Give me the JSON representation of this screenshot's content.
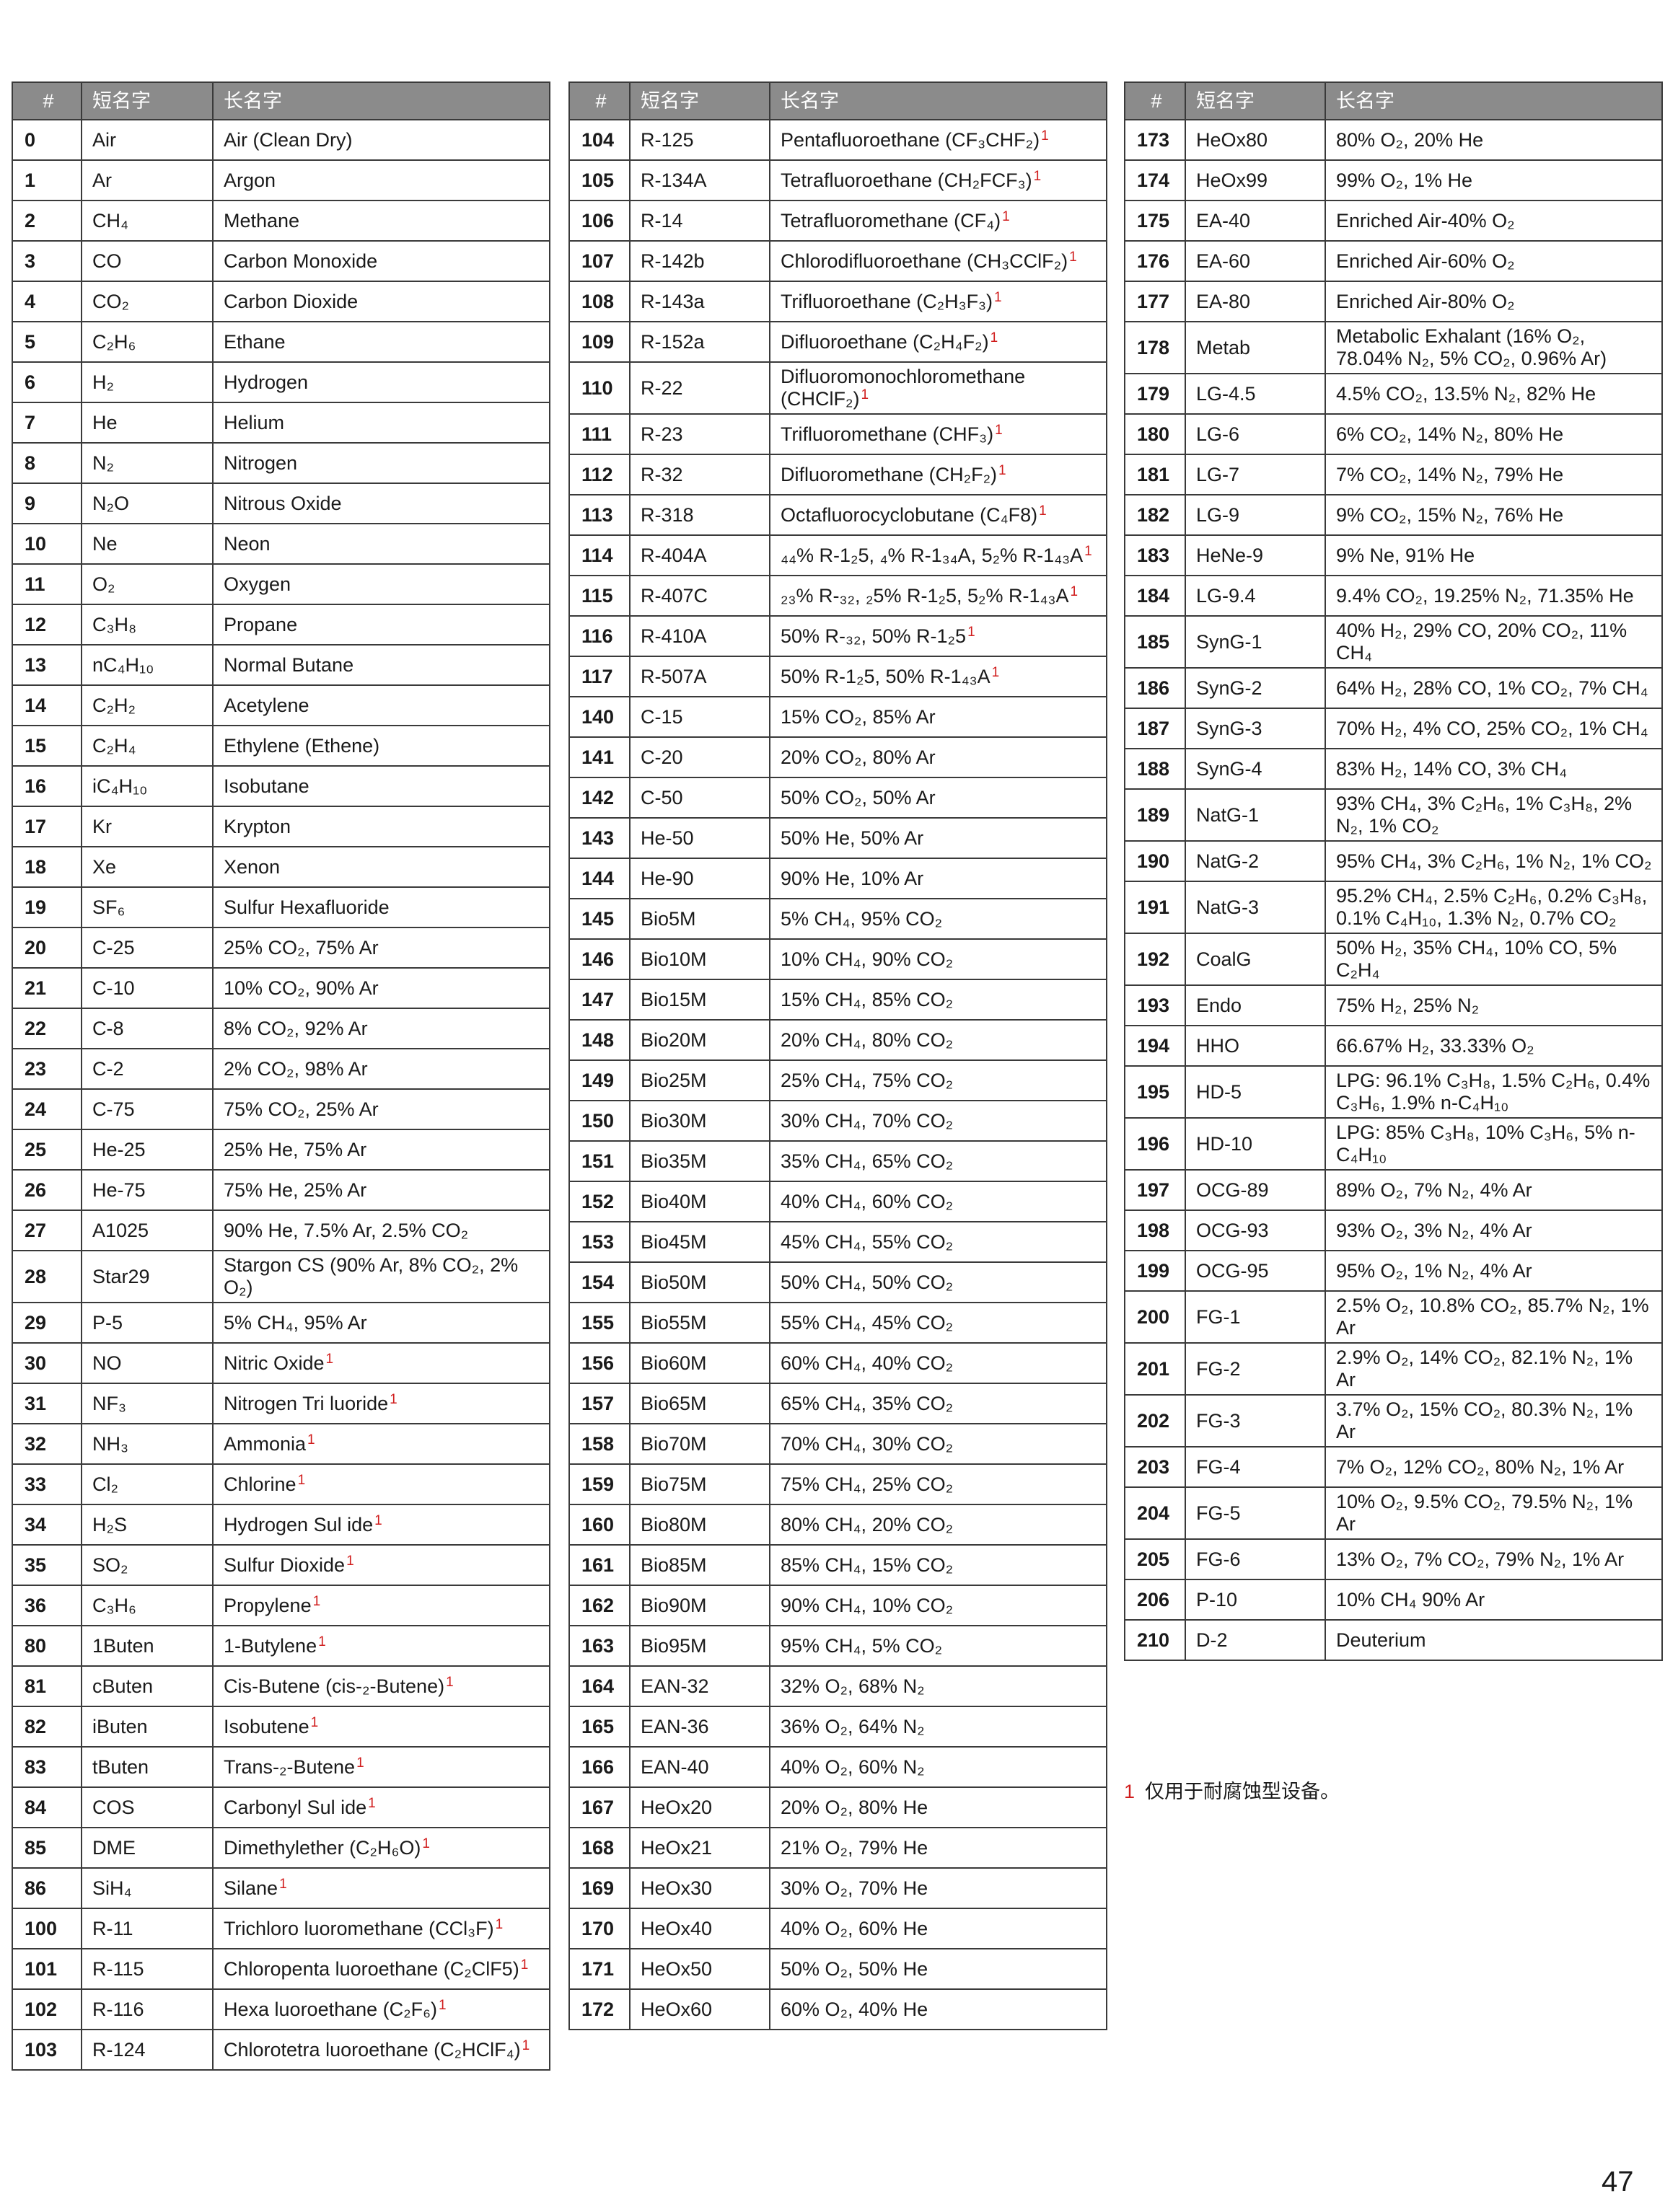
{
  "tables": [
    {
      "header": [
        "#",
        "短名字",
        "长名字"
      ],
      "rows": [
        [
          "0",
          "Air",
          "Air (Clean Dry)"
        ],
        [
          "1",
          "Ar",
          "Argon"
        ],
        [
          "2",
          "CH₄",
          "Methane"
        ],
        [
          "3",
          "CO",
          "Carbon Monoxide"
        ],
        [
          "4",
          "CO₂",
          "Carbon Dioxide"
        ],
        [
          "5",
          "C₂H₆",
          "Ethane"
        ],
        [
          "6",
          "H₂",
          "Hydrogen"
        ],
        [
          "7",
          "He",
          "Helium"
        ],
        [
          "8",
          "N₂",
          "Nitrogen"
        ],
        [
          "9",
          "N₂O",
          "Nitrous Oxide"
        ],
        [
          "10",
          "Ne",
          "Neon"
        ],
        [
          "11",
          "O₂",
          "Oxygen"
        ],
        [
          "12",
          "C₃H₈",
          "Propane"
        ],
        [
          "13",
          "nC₄H₁₀",
          "Normal Butane"
        ],
        [
          "14",
          "C₂H₂",
          "Acetylene"
        ],
        [
          "15",
          "C₂H₄",
          "Ethylene (Ethene)"
        ],
        [
          "16",
          "iC₄H₁₀",
          "Isobutane"
        ],
        [
          "17",
          "Kr",
          "Krypton"
        ],
        [
          "18",
          "Xe",
          "Xenon"
        ],
        [
          "19",
          "SF₆",
          "Sulfur Hexafluoride"
        ],
        [
          "20",
          "C-25",
          "25% CO₂, 75% Ar"
        ],
        [
          "21",
          "C-10",
          "10% CO₂, 90% Ar"
        ],
        [
          "22",
          "C-8",
          "8% CO₂, 92% Ar"
        ],
        [
          "23",
          "C-2",
          "2% CO₂, 98% Ar"
        ],
        [
          "24",
          "C-75",
          "75% CO₂, 25% Ar"
        ],
        [
          "25",
          "He-25",
          "25% He, 75% Ar"
        ],
        [
          "26",
          "He-75",
          "75% He, 25% Ar"
        ],
        [
          "27",
          "A1025",
          "90% He, 7.5% Ar, 2.5% CO₂"
        ],
        [
          "28",
          "Star29",
          "Stargon CS (90% Ar, 8% CO₂, 2% O₂)"
        ],
        [
          "29",
          "P-5",
          "5% CH₄, 95% Ar"
        ],
        [
          "30",
          "NO",
          "Nitric Oxide",
          "1"
        ],
        [
          "31",
          "NF₃",
          "Nitrogen Tri luoride",
          "1"
        ],
        [
          "32",
          "NH₃",
          "Ammonia",
          "1"
        ],
        [
          "33",
          "Cl₂",
          "Chlorine",
          "1"
        ],
        [
          "34",
          "H₂S",
          "Hydrogen Sul ide",
          "1"
        ],
        [
          "35",
          "SO₂",
          "Sulfur Dioxide",
          "1"
        ],
        [
          "36",
          "C₃H₆",
          "Propylene",
          "1"
        ],
        [
          "80",
          "1Buten",
          "1-Butylene",
          "1"
        ],
        [
          "81",
          "cButen",
          "Cis-Butene (cis-₂-Butene)",
          "1"
        ],
        [
          "82",
          "iButen",
          "Isobutene",
          "1"
        ],
        [
          "83",
          "tButen",
          "Trans-₂-Butene",
          "1"
        ],
        [
          "84",
          "COS",
          "Carbonyl Sul ide",
          "1"
        ],
        [
          "85",
          "DME",
          "Dimethylether (C₂H₆O)",
          "1"
        ],
        [
          "86",
          "SiH₄",
          "Silane",
          "1"
        ],
        [
          "100",
          "R-11",
          "Trichloro luoromethane (CCl₃F)",
          "1"
        ],
        [
          "101",
          "R-115",
          "Chloropenta luoroethane (C₂ClF5)",
          "1"
        ],
        [
          "102",
          "R-116",
          "Hexa luoroethane (C₂F₆)",
          "1"
        ],
        [
          "103",
          "R-124",
          "Chlorotetra luoroethane (C₂HClF₄)",
          "1"
        ]
      ]
    },
    {
      "header": [
        "#",
        "短名字",
        "长名字"
      ],
      "rows": [
        [
          "104",
          "R-125",
          "Pentafluoroethane (CF₃CHF₂)",
          "1"
        ],
        [
          "105",
          "R-134A",
          "Tetrafluoroethane (CH₂FCF₃)",
          "1"
        ],
        [
          "106",
          "R-14",
          "Tetrafluoromethane (CF₄)",
          "1"
        ],
        [
          "107",
          "R-142b",
          "Chlorodifluoroethane (CH₃CClF₂)",
          "1"
        ],
        [
          "108",
          "R-143a",
          "Trifluoroethane (C₂H₃F₃)",
          "1"
        ],
        [
          "109",
          "R-152a",
          "Difluoroethane (C₂H₄F₂)",
          "1"
        ],
        [
          "110",
          "R-22",
          "Difluoromonochloromethane (CHClF₂)",
          "1"
        ],
        [
          "111",
          "R-23",
          "Trifluoromethane (CHF₃)",
          "1"
        ],
        [
          "112",
          "R-32",
          "Difluoromethane (CH₂F₂)",
          "1"
        ],
        [
          "113",
          "R-318",
          "Octafluorocyclobutane (C₄F8)",
          "1"
        ],
        [
          "114",
          "R-404A",
          "₄₄% R-1₂5, ₄% R-1₃₄A, 5₂% R-1₄₃A",
          "1"
        ],
        [
          "115",
          "R-407C",
          "₂₃% R-₃₂, ₂5% R-1₂5, 5₂% R-1₄₃A",
          "1"
        ],
        [
          "116",
          "R-410A",
          "50% R-₃₂, 50% R-1₂5",
          "1"
        ],
        [
          "117",
          "R-507A",
          "50% R-1₂5, 50% R-1₄₃A",
          "1"
        ],
        [
          "140",
          "C-15",
          "15% CO₂, 85% Ar"
        ],
        [
          "141",
          "C-20",
          "20% CO₂, 80% Ar"
        ],
        [
          "142",
          "C-50",
          "50% CO₂, 50% Ar"
        ],
        [
          "143",
          "He-50",
          "50% He, 50% Ar"
        ],
        [
          "144",
          "He-90",
          "90% He, 10% Ar"
        ],
        [
          "145",
          "Bio5M",
          "5% CH₄, 95% CO₂"
        ],
        [
          "146",
          "Bio10M",
          "10% CH₄, 90% CO₂"
        ],
        [
          "147",
          "Bio15M",
          "15% CH₄, 85% CO₂"
        ],
        [
          "148",
          "Bio20M",
          "20% CH₄, 80% CO₂"
        ],
        [
          "149",
          "Bio25M",
          "25% CH₄, 75% CO₂"
        ],
        [
          "150",
          "Bio30M",
          "30% CH₄, 70% CO₂"
        ],
        [
          "151",
          "Bio35M",
          "35% CH₄, 65% CO₂"
        ],
        [
          "152",
          "Bio40M",
          "40% CH₄, 60% CO₂"
        ],
        [
          "153",
          "Bio45M",
          "45% CH₄, 55% CO₂"
        ],
        [
          "154",
          "Bio50M",
          "50% CH₄, 50% CO₂"
        ],
        [
          "155",
          "Bio55M",
          "55% CH₄, 45% CO₂"
        ],
        [
          "156",
          "Bio60M",
          "60% CH₄, 40% CO₂"
        ],
        [
          "157",
          "Bio65M",
          "65% CH₄, 35% CO₂"
        ],
        [
          "158",
          "Bio70M",
          "70% CH₄, 30% CO₂"
        ],
        [
          "159",
          "Bio75M",
          "75% CH₄, 25% CO₂"
        ],
        [
          "160",
          "Bio80M",
          "80% CH₄, 20% CO₂"
        ],
        [
          "161",
          "Bio85M",
          "85% CH₄, 15% CO₂"
        ],
        [
          "162",
          "Bio90M",
          "90% CH₄, 10% CO₂"
        ],
        [
          "163",
          "Bio95M",
          "95% CH₄, 5% CO₂"
        ],
        [
          "164",
          "EAN-32",
          "32% O₂, 68% N₂"
        ],
        [
          "165",
          "EAN-36",
          "36% O₂, 64% N₂"
        ],
        [
          "166",
          "EAN-40",
          "40% O₂, 60% N₂"
        ],
        [
          "167",
          "HeOx20",
          "20% O₂, 80% He"
        ],
        [
          "168",
          "HeOx21",
          "21% O₂, 79% He"
        ],
        [
          "169",
          "HeOx30",
          "30% O₂, 70% He"
        ],
        [
          "170",
          "HeOx40",
          "40% O₂, 60% He"
        ],
        [
          "171",
          "HeOx50",
          "50% O₂, 50% He"
        ],
        [
          "172",
          "HeOx60",
          "60% O₂, 40% He"
        ]
      ]
    },
    {
      "header": [
        "#",
        "短名字",
        "长名字"
      ],
      "rows": [
        [
          "173",
          "HeOx80",
          "80% O₂, 20% He"
        ],
        [
          "174",
          "HeOx99",
          "99% O₂, 1% He"
        ],
        [
          "175",
          "EA-40",
          "Enriched Air-40% O₂"
        ],
        [
          "176",
          "EA-60",
          "Enriched Air-60% O₂"
        ],
        [
          "177",
          "EA-80",
          "Enriched Air-80% O₂"
        ],
        [
          "178",
          "Metab",
          "Metabolic Exhalant (16% O₂, 78.04% N₂, 5% CO₂, 0.96% Ar)"
        ],
        [
          "179",
          "LG-4.5",
          "4.5% CO₂, 13.5% N₂, 82% He"
        ],
        [
          "180",
          "LG-6",
          "6% CO₂, 14% N₂, 80% He"
        ],
        [
          "181",
          "LG-7",
          "7% CO₂, 14% N₂, 79% He"
        ],
        [
          "182",
          "LG-9",
          "9% CO₂, 15% N₂, 76% He"
        ],
        [
          "183",
          "HeNe-9",
          "9% Ne, 91% He"
        ],
        [
          "184",
          "LG-9.4",
          "9.4% CO₂, 19.25% N₂, 71.35% He"
        ],
        [
          "185",
          "SynG-1",
          "40% H₂, 29% CO, 20% CO₂, 11% CH₄"
        ],
        [
          "186",
          "SynG-2",
          "64% H₂, 28% CO, 1% CO₂, 7% CH₄"
        ],
        [
          "187",
          "SynG-3",
          "70% H₂, 4% CO, 25% CO₂, 1% CH₄"
        ],
        [
          "188",
          "SynG-4",
          "83% H₂, 14% CO, 3% CH₄"
        ],
        [
          "189",
          "NatG-1",
          "93% CH₄, 3% C₂H₆, 1% C₃H₈, 2% N₂, 1% CO₂"
        ],
        [
          "190",
          "NatG-2",
          "95% CH₄, 3% C₂H₆, 1% N₂, 1% CO₂"
        ],
        [
          "191",
          "NatG-3",
          "95.2% CH₄, 2.5% C₂H₆, 0.2% C₃H₈, 0.1% C₄H₁₀, 1.3% N₂, 0.7% CO₂"
        ],
        [
          "192",
          "CoalG",
          "50% H₂, 35% CH₄, 10% CO, 5% C₂H₄"
        ],
        [
          "193",
          "Endo",
          "75% H₂, 25% N₂"
        ],
        [
          "194",
          "HHO",
          "66.67% H₂, 33.33% O₂"
        ],
        [
          "195",
          "HD-5",
          "LPG: 96.1% C₃H₈, 1.5% C₂H₆, 0.4% C₃H₆, 1.9% n-C₄H₁₀"
        ],
        [
          "196",
          "HD-10",
          "LPG: 85% C₃H₈, 10% C₃H₆, 5% n-C₄H₁₀"
        ],
        [
          "197",
          "OCG-89",
          "89% O₂, 7% N₂, 4% Ar"
        ],
        [
          "198",
          "OCG-93",
          "93% O₂, 3% N₂, 4% Ar"
        ],
        [
          "199",
          "OCG-95",
          "95% O₂, 1% N₂, 4% Ar"
        ],
        [
          "200",
          "FG-1",
          "2.5% O₂, 10.8% CO₂, 85.7% N₂, 1% Ar"
        ],
        [
          "201",
          "FG-2",
          "2.9% O₂, 14% CO₂, 82.1% N₂, 1% Ar"
        ],
        [
          "202",
          "FG-3",
          "3.7% O₂, 15% CO₂, 80.3% N₂, 1% Ar"
        ],
        [
          "203",
          "FG-4",
          "7% O₂, 12% CO₂, 80% N₂, 1% Ar"
        ],
        [
          "204",
          "FG-5",
          "10% O₂, 9.5% CO₂, 79.5% N₂, 1% Ar"
        ],
        [
          "205",
          "FG-6",
          "13% O₂, 7% CO₂, 79% N₂, 1% Ar"
        ],
        [
          "206",
          "P-10",
          "10% CH₄ 90% Ar"
        ],
        [
          "210",
          "D-2",
          "Deuterium"
        ]
      ]
    }
  ],
  "footnote": {
    "marker": "1",
    "text": "仅用于耐腐蚀型设备。"
  },
  "page_number": "47"
}
